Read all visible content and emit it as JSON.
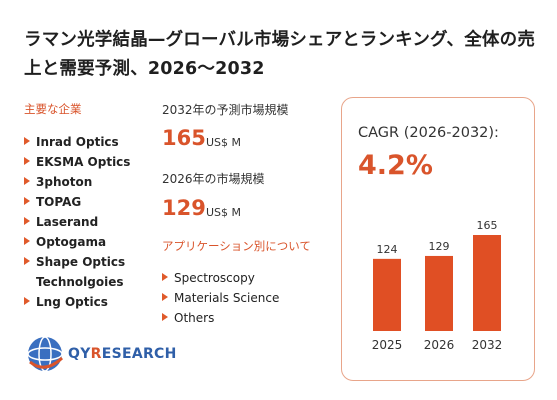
{
  "title": "ラマン光学結晶—グローバル市場シェアとランキング、全体の売上と需要予測、2026〜2032",
  "key_companies": {
    "label": "主要な企業",
    "items": [
      {
        "name": "Inrad Optics",
        "arrow": true
      },
      {
        "name": "EKSMA Optics",
        "arrow": true
      },
      {
        "name": "3photon",
        "arrow": true
      },
      {
        "name": "TOPAG",
        "arrow": true
      },
      {
        "name": "Laserand",
        "arrow": true
      },
      {
        "name": "Optogama",
        "arrow": true
      },
      {
        "name": "Shape Optics",
        "arrow": true
      },
      {
        "name": "Technolgoies",
        "arrow": false
      },
      {
        "name": "Lng Optics",
        "arrow": true
      }
    ]
  },
  "forecast_2032": {
    "label": "2032年の予測市場規模",
    "value": "165",
    "unit": "US$ M"
  },
  "market_2026": {
    "label": "2026年の市場規模",
    "value": "129",
    "unit": "US$ M"
  },
  "applications": {
    "label": "アプリケーション別について",
    "items": [
      "Spectroscopy",
      "Materials Science",
      "Others"
    ]
  },
  "cagr": {
    "label": "CAGR (2026-2032):",
    "value": "4.2%"
  },
  "logo": {
    "text_main": "QY",
    "text_accent": "R",
    "text_rest": "ESEARCH"
  },
  "colors": {
    "accent": "#d9542b",
    "bar": "#e04f24",
    "box_border": "#e8a58a"
  },
  "chart_data": {
    "type": "bar",
    "categories": [
      "2025",
      "2026",
      "2032"
    ],
    "values": [
      124,
      129,
      165
    ],
    "ylim": [
      0,
      165
    ],
    "grid": false,
    "legend": "none"
  }
}
